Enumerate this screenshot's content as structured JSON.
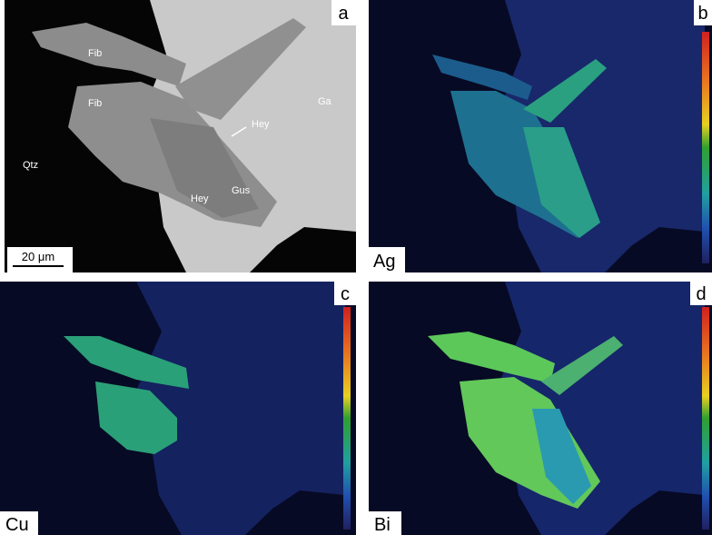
{
  "panels": [
    {
      "letter": "a",
      "labels": [
        "Fib",
        "Fib",
        "Hey",
        "Ga",
        "Qtz",
        "Hey",
        "Gus"
      ],
      "scale_bar": "20 μm"
    },
    {
      "letter": "b",
      "element": "Ag"
    },
    {
      "letter": "c",
      "element": "Cu"
    },
    {
      "letter": "d",
      "element": "Bi"
    }
  ]
}
